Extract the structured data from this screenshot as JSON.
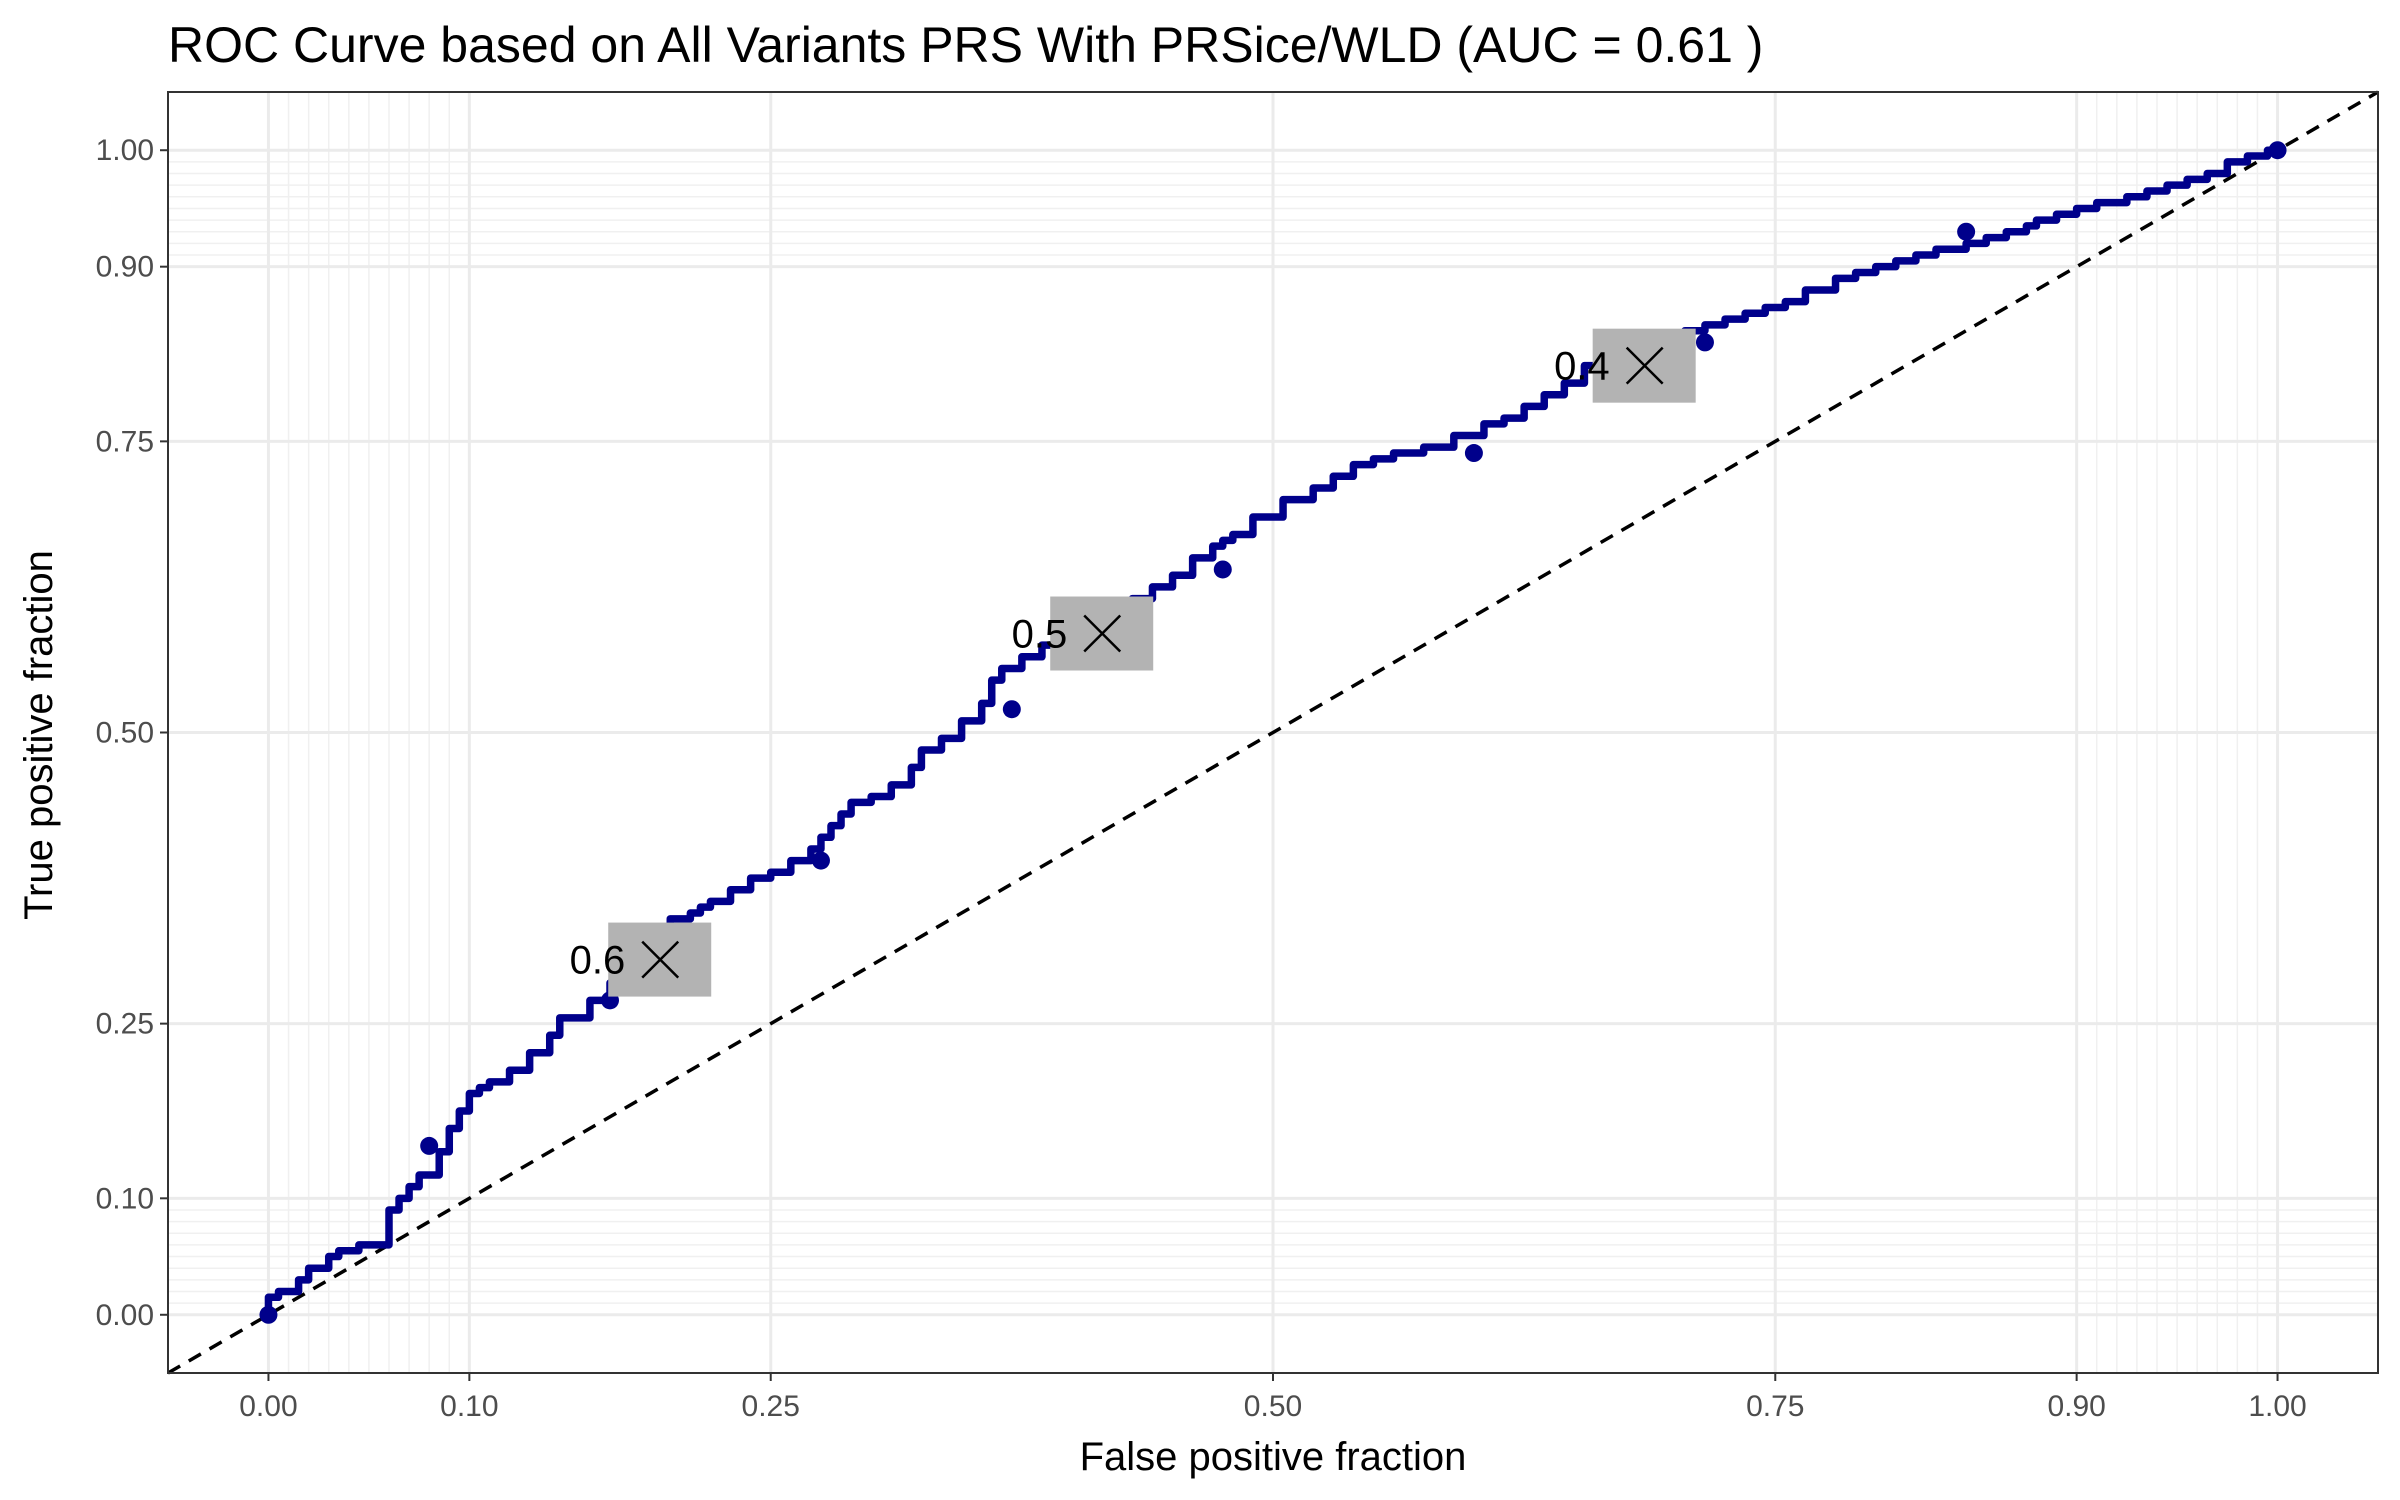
{
  "chart_data": {
    "type": "line",
    "title": "ROC Curve based on All Variants PRS With PRSice/WLD (AUC = 0.61 )",
    "xlabel": "False positive fraction",
    "ylabel": "True positive fraction",
    "xlim": [
      -0.05,
      1.05
    ],
    "ylim": [
      -0.05,
      1.05
    ],
    "x_ticks": [
      0.0,
      0.1,
      0.25,
      0.5,
      0.75,
      0.9,
      1.0
    ],
    "x_tick_labels": [
      "0.00",
      "0.10",
      "0.25",
      "0.50",
      "0.75",
      "0.90",
      "1.00"
    ],
    "y_ticks": [
      0.0,
      0.1,
      0.25,
      0.5,
      0.75,
      0.9,
      1.0
    ],
    "y_tick_labels": [
      "0.00",
      "0.10",
      "0.25",
      "0.50",
      "0.75",
      "0.90",
      "1.00"
    ],
    "line_color": "#00008B",
    "reference_line": {
      "from": [
        0,
        0
      ],
      "to": [
        1,
        1
      ],
      "style": "dashed",
      "color": "#000000"
    },
    "series": [
      {
        "name": "ROC",
        "x": [
          0.0,
          0.0,
          0.005,
          0.015,
          0.02,
          0.03,
          0.035,
          0.045,
          0.05,
          0.06,
          0.065,
          0.07,
          0.075,
          0.085,
          0.09,
          0.095,
          0.1,
          0.105,
          0.11,
          0.12,
          0.13,
          0.14,
          0.145,
          0.16,
          0.17,
          0.18,
          0.185,
          0.19,
          0.2,
          0.21,
          0.215,
          0.22,
          0.23,
          0.24,
          0.25,
          0.26,
          0.27,
          0.275,
          0.28,
          0.285,
          0.29,
          0.3,
          0.31,
          0.32,
          0.325,
          0.335,
          0.345,
          0.355,
          0.36,
          0.365,
          0.375,
          0.385,
          0.395,
          0.405,
          0.415,
          0.425,
          0.43,
          0.44,
          0.45,
          0.46,
          0.47,
          0.475,
          0.48,
          0.49,
          0.505,
          0.52,
          0.53,
          0.54,
          0.55,
          0.56,
          0.575,
          0.59,
          0.605,
          0.615,
          0.625,
          0.635,
          0.645,
          0.655,
          0.665,
          0.67,
          0.68,
          0.69,
          0.695,
          0.705,
          0.715,
          0.725,
          0.735,
          0.745,
          0.755,
          0.765,
          0.78,
          0.79,
          0.8,
          0.81,
          0.82,
          0.83,
          0.845,
          0.855,
          0.865,
          0.875,
          0.88,
          0.89,
          0.9,
          0.91,
          0.915,
          0.925,
          0.935,
          0.945,
          0.955,
          0.965,
          0.975,
          0.985,
          0.995,
          1.0
        ],
        "y": [
          0.0,
          0.015,
          0.02,
          0.03,
          0.04,
          0.05,
          0.055,
          0.06,
          0.06,
          0.09,
          0.1,
          0.11,
          0.12,
          0.14,
          0.16,
          0.175,
          0.19,
          0.195,
          0.2,
          0.21,
          0.225,
          0.24,
          0.255,
          0.27,
          0.285,
          0.3,
          0.315,
          0.33,
          0.34,
          0.345,
          0.35,
          0.355,
          0.365,
          0.375,
          0.38,
          0.39,
          0.4,
          0.41,
          0.42,
          0.43,
          0.44,
          0.445,
          0.455,
          0.47,
          0.485,
          0.495,
          0.51,
          0.525,
          0.545,
          0.555,
          0.565,
          0.575,
          0.585,
          0.59,
          0.6,
          0.61,
          0.615,
          0.625,
          0.635,
          0.65,
          0.66,
          0.665,
          0.67,
          0.685,
          0.7,
          0.71,
          0.72,
          0.73,
          0.735,
          0.74,
          0.745,
          0.755,
          0.765,
          0.77,
          0.78,
          0.79,
          0.8,
          0.815,
          0.825,
          0.83,
          0.835,
          0.84,
          0.84,
          0.845,
          0.85,
          0.855,
          0.86,
          0.865,
          0.87,
          0.88,
          0.89,
          0.895,
          0.9,
          0.905,
          0.91,
          0.915,
          0.92,
          0.925,
          0.93,
          0.935,
          0.94,
          0.945,
          0.95,
          0.955,
          0.955,
          0.96,
          0.965,
          0.97,
          0.975,
          0.98,
          0.99,
          0.995,
          1.0,
          1.0
        ]
      }
    ],
    "points": [
      {
        "x": 0.0,
        "y": 0.0
      },
      {
        "x": 0.08,
        "y": 0.145
      },
      {
        "x": 0.17,
        "y": 0.27
      },
      {
        "x": 0.275,
        "y": 0.39
      },
      {
        "x": 0.37,
        "y": 0.52
      },
      {
        "x": 0.475,
        "y": 0.64
      },
      {
        "x": 0.6,
        "y": 0.74
      },
      {
        "x": 0.715,
        "y": 0.835
      },
      {
        "x": 0.845,
        "y": 0.93
      },
      {
        "x": 1.0,
        "y": 1.0
      }
    ],
    "cutoffs": [
      {
        "label": "0.6",
        "x": 0.195,
        "y": 0.305
      },
      {
        "label": "0.5",
        "x": 0.415,
        "y": 0.585
      },
      {
        "label": "0.4",
        "x": 0.685,
        "y": 0.815
      }
    ]
  }
}
